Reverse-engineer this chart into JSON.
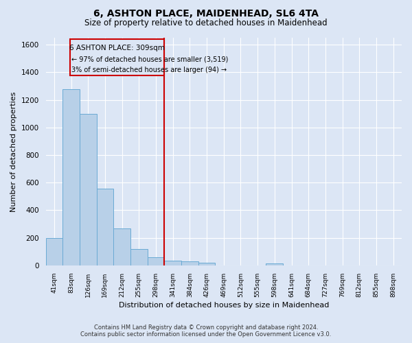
{
  "title": "6, ASHTON PLACE, MAIDENHEAD, SL6 4TA",
  "subtitle": "Size of property relative to detached houses in Maidenhead",
  "xlabel": "Distribution of detached houses by size in Maidenhead",
  "ylabel": "Number of detached properties",
  "footer_line1": "Contains HM Land Registry data © Crown copyright and database right 2024.",
  "footer_line2": "Contains public sector information licensed under the Open Government Licence v3.0.",
  "categories": [
    "41sqm",
    "83sqm",
    "126sqm",
    "169sqm",
    "212sqm",
    "255sqm",
    "298sqm",
    "341sqm",
    "384sqm",
    "426sqm",
    "469sqm",
    "512sqm",
    "555sqm",
    "598sqm",
    "641sqm",
    "684sqm",
    "727sqm",
    "769sqm",
    "812sqm",
    "855sqm",
    "898sqm"
  ],
  "values": [
    197,
    1275,
    1100,
    557,
    268,
    120,
    60,
    35,
    30,
    18,
    0,
    0,
    0,
    15,
    0,
    0,
    0,
    0,
    0,
    0,
    0
  ],
  "bar_color": "#b8d0e8",
  "bar_edge_color": "#6aaad4",
  "background_color": "#dce6f5",
  "grid_color": "#ffffff",
  "annotation_box_color": "#cc0000",
  "annotation_line_color": "#cc0000",
  "annotation_text": "6 ASHTON PLACE: 309sqm",
  "annotation_line1": "← 97% of detached houses are smaller (3,519)",
  "annotation_line2": "3% of semi-detached houses are larger (94) →",
  "property_line_x": 6.5,
  "ylim": [
    0,
    1650
  ],
  "yticks": [
    0,
    200,
    400,
    600,
    800,
    1000,
    1200,
    1400,
    1600
  ],
  "figsize": [
    6.0,
    5.0
  ],
  "dpi": 100
}
